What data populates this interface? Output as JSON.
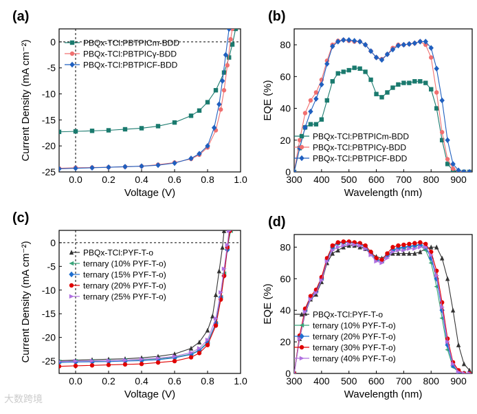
{
  "watermark": "大数跨境",
  "chart_data": [
    {
      "panel": "(a)",
      "type": "line",
      "xlabel": "Voltage (V)",
      "ylabel": "Current Density (mA cm⁻²)",
      "xlim": [
        -0.1,
        1.0
      ],
      "ylim": [
        -25,
        2.5
      ],
      "xticks": [
        0.0,
        0.2,
        0.4,
        0.6,
        0.8,
        1.0
      ],
      "yticks": [
        -25,
        -20,
        -15,
        -10,
        -5,
        0
      ],
      "xtick_labels": [
        "0.0",
        "0.2",
        "0.4",
        "0.6",
        "0.8",
        "1.0"
      ],
      "ytick_labels": [
        "-25",
        "-20",
        "-15",
        "-10",
        "-5",
        "0"
      ],
      "legend": "top-left",
      "series": [
        {
          "name": "PBQx-TCl:PBTPICm-BDD",
          "color": "#1a7a6e",
          "marker": "square",
          "x": [
            -0.1,
            0,
            0.1,
            0.2,
            0.3,
            0.4,
            0.5,
            0.6,
            0.7,
            0.75,
            0.8,
            0.85,
            0.9,
            0.93,
            0.95,
            0.97
          ],
          "y": [
            -17.3,
            -17.2,
            -17.1,
            -17.0,
            -16.8,
            -16.6,
            -16.2,
            -15.5,
            -14.2,
            -13.2,
            -11.6,
            -9.3,
            -5.9,
            -3.0,
            -0.5,
            2.5
          ]
        },
        {
          "name": "PBQx-TCl:PBTPICγ-BDD",
          "color": "#f07070",
          "marker": "circle",
          "x": [
            -0.1,
            0,
            0.1,
            0.2,
            0.3,
            0.4,
            0.5,
            0.6,
            0.7,
            0.75,
            0.8,
            0.85,
            0.88,
            0.9,
            0.92,
            0.94,
            0.95
          ],
          "y": [
            -24.3,
            -24.2,
            -24.15,
            -24.1,
            -24.0,
            -23.9,
            -23.6,
            -23.2,
            -22.5,
            -21.7,
            -20.3,
            -17.0,
            -13.0,
            -9.3,
            -4.5,
            0.5,
            2.5
          ]
        },
        {
          "name": "PBQx-TCl:PBTPICF-BDD",
          "color": "#1f5fbf",
          "marker": "diamond",
          "x": [
            -0.1,
            0,
            0.1,
            0.2,
            0.3,
            0.4,
            0.5,
            0.6,
            0.7,
            0.75,
            0.8,
            0.84,
            0.87,
            0.89,
            0.91,
            0.93
          ],
          "y": [
            -24.4,
            -24.3,
            -24.2,
            -24.1,
            -24.0,
            -23.9,
            -23.7,
            -23.3,
            -22.4,
            -21.5,
            -20.0,
            -16.5,
            -12.0,
            -7.5,
            -2.5,
            2.5
          ]
        }
      ]
    },
    {
      "panel": "(b)",
      "type": "line",
      "xlabel": "Wavelength (nm)",
      "ylabel": "EQE (%)",
      "xlim": [
        300,
        950
      ],
      "ylim": [
        0,
        90
      ],
      "xticks": [
        300,
        400,
        500,
        600,
        700,
        800,
        900
      ],
      "yticks": [
        0,
        20,
        40,
        60,
        80
      ],
      "xtick_labels": [
        "300",
        "400",
        "500",
        "600",
        "700",
        "800",
        "900"
      ],
      "ytick_labels": [
        "0",
        "20",
        "40",
        "60",
        "80"
      ],
      "legend": "bottom-center",
      "series": [
        {
          "name": "PBQx-TCl:PBTPICm-BDD",
          "color": "#1a7a6e",
          "marker": "square",
          "x": [
            300,
            320,
            340,
            360,
            380,
            400,
            420,
            440,
            460,
            480,
            500,
            520,
            540,
            560,
            580,
            600,
            620,
            640,
            660,
            680,
            700,
            720,
            740,
            760,
            780,
            800,
            820,
            840,
            860,
            880,
            900,
            920,
            940
          ],
          "y": [
            0,
            15,
            28,
            30,
            30,
            33,
            45,
            57,
            62,
            63,
            64,
            65.5,
            65,
            63,
            58,
            49,
            47,
            50,
            53,
            55,
            56,
            56,
            57,
            57,
            56,
            52,
            40,
            20,
            5,
            1,
            0,
            0,
            0
          ]
        },
        {
          "name": "PBQx-TCl:PBTPICγ-BDD",
          "color": "#f07070",
          "marker": "circle",
          "x": [
            300,
            320,
            340,
            360,
            380,
            400,
            420,
            440,
            460,
            480,
            500,
            520,
            540,
            560,
            580,
            600,
            620,
            640,
            660,
            680,
            700,
            720,
            740,
            760,
            780,
            800,
            820,
            840,
            860,
            880,
            900,
            920,
            940
          ],
          "y": [
            0,
            20,
            37,
            45,
            50,
            58,
            70,
            80,
            82.5,
            83,
            82.5,
            82,
            82,
            80,
            76,
            72,
            71,
            74,
            78,
            80,
            80,
            80.5,
            81,
            82,
            80,
            72,
            50,
            25,
            8,
            2,
            0.5,
            0,
            0
          ]
        },
        {
          "name": "PBQx-TCl:PBTPICF-BDD",
          "color": "#1f5fbf",
          "marker": "diamond",
          "x": [
            300,
            320,
            340,
            360,
            380,
            400,
            420,
            440,
            460,
            480,
            500,
            520,
            540,
            560,
            580,
            600,
            620,
            640,
            660,
            680,
            700,
            720,
            740,
            760,
            780,
            800,
            820,
            840,
            860,
            880,
            900,
            920,
            940
          ],
          "y": [
            0,
            15,
            28,
            38,
            46,
            55,
            68,
            79,
            82,
            83,
            83,
            82.5,
            82,
            80,
            76,
            72,
            70.5,
            74,
            77,
            79.5,
            80,
            80.5,
            81,
            82,
            82,
            78,
            65,
            45,
            20,
            5,
            1,
            0,
            0
          ]
        }
      ]
    },
    {
      "panel": "(c)",
      "type": "line",
      "xlabel": "Voltage (V)",
      "ylabel": "Current Density (mA cm⁻²)",
      "xlim": [
        -0.1,
        1.0
      ],
      "ylim": [
        -27.6,
        2.6
      ],
      "xticks": [
        0.0,
        0.2,
        0.4,
        0.6,
        0.8,
        1.0
      ],
      "yticks": [
        -25,
        -20,
        -15,
        -10,
        -5,
        0
      ],
      "xtick_labels": [
        "0.0",
        "0.2",
        "0.4",
        "0.6",
        "0.8",
        "1.0"
      ],
      "ytick_labels": [
        "-25",
        "-20",
        "-15",
        "-10",
        "-5",
        "0"
      ],
      "legend": "top-left",
      "series": [
        {
          "name": "PBQx-TCl:PYF-T-o",
          "color": "#333333",
          "marker": "triangle-up",
          "x": [
            -0.1,
            0,
            0.1,
            0.2,
            0.3,
            0.4,
            0.5,
            0.6,
            0.7,
            0.75,
            0.8,
            0.83,
            0.85,
            0.87,
            0.89,
            0.9
          ],
          "y": [
            -24.9,
            -24.8,
            -24.7,
            -24.6,
            -24.5,
            -24.3,
            -24.0,
            -23.5,
            -22.3,
            -21.0,
            -18.5,
            -15.5,
            -11,
            -6,
            -1,
            2.5
          ]
        },
        {
          "name": "ternary (10% PYF-T-o)",
          "color": "#3aa57a",
          "marker": "triangle-left",
          "x": [
            -0.1,
            0,
            0.1,
            0.2,
            0.3,
            0.4,
            0.5,
            0.6,
            0.7,
            0.75,
            0.8,
            0.85,
            0.88,
            0.9,
            0.92,
            0.94
          ],
          "y": [
            -25.1,
            -25.0,
            -25.0,
            -24.9,
            -24.8,
            -24.7,
            -24.5,
            -24.2,
            -23.5,
            -22.7,
            -21.0,
            -17.0,
            -11.5,
            -6.5,
            -1,
            2.5
          ]
        },
        {
          "name": "ternary (15% PYF-T-o)",
          "color": "#1f6fd0",
          "marker": "diamond",
          "x": [
            -0.1,
            0,
            0.1,
            0.2,
            0.3,
            0.4,
            0.5,
            0.6,
            0.7,
            0.75,
            0.8,
            0.85,
            0.88,
            0.9,
            0.92,
            0.935
          ],
          "y": [
            -25.3,
            -25.2,
            -25.15,
            -25.1,
            -25.0,
            -24.9,
            -24.7,
            -24.3,
            -23.6,
            -22.8,
            -21.2,
            -17.0,
            -11.5,
            -7,
            -1.5,
            2.5
          ]
        },
        {
          "name": "ternary (20% PYF-T-o)",
          "color": "#e00000",
          "marker": "circle",
          "x": [
            -0.1,
            0,
            0.1,
            0.2,
            0.3,
            0.4,
            0.5,
            0.6,
            0.7,
            0.75,
            0.8,
            0.85,
            0.88,
            0.9,
            0.92,
            0.935
          ],
          "y": [
            -26.1,
            -26.0,
            -25.9,
            -25.8,
            -25.7,
            -25.6,
            -25.3,
            -25.0,
            -24.2,
            -23.3,
            -21.6,
            -17.5,
            -12,
            -7,
            -1,
            2.5
          ]
        },
        {
          "name": "ternary (25% PYF-T-o)",
          "color": "#b070e0",
          "marker": "triangle-right",
          "x": [
            -0.1,
            0,
            0.1,
            0.2,
            0.3,
            0.4,
            0.5,
            0.6,
            0.7,
            0.75,
            0.8,
            0.85,
            0.88,
            0.9,
            0.92,
            0.93
          ],
          "y": [
            -25.1,
            -25.0,
            -24.95,
            -24.9,
            -24.8,
            -24.6,
            -24.4,
            -24.0,
            -23.2,
            -22.3,
            -20.5,
            -16.0,
            -10.5,
            -5.5,
            -0.5,
            2.5
          ]
        }
      ]
    },
    {
      "panel": "(d)",
      "type": "line",
      "xlabel": "Wavelength (nm)",
      "ylabel": "EQE (%)",
      "xlim": [
        300,
        950
      ],
      "ylim": [
        0,
        88
      ],
      "xticks": [
        300,
        400,
        500,
        600,
        700,
        800,
        900
      ],
      "yticks": [
        0,
        20,
        40,
        60,
        80
      ],
      "xtick_labels": [
        "300",
        "400",
        "500",
        "600",
        "700",
        "800",
        "900"
      ],
      "ytick_labels": [
        "0",
        "20",
        "40",
        "60",
        "80"
      ],
      "legend": "bottom-left",
      "series": [
        {
          "name": "PBQx-TCl:PYF-T-o",
          "color": "#333333",
          "marker": "triangle-up",
          "x": [
            300,
            320,
            340,
            360,
            380,
            400,
            420,
            440,
            460,
            480,
            500,
            520,
            540,
            560,
            580,
            600,
            620,
            640,
            660,
            680,
            700,
            720,
            740,
            760,
            780,
            800,
            820,
            840,
            860,
            880,
            900,
            920,
            940
          ],
          "y": [
            0,
            22,
            38,
            47,
            50,
            58,
            70,
            76,
            78,
            80,
            81,
            81,
            80,
            79,
            76,
            74,
            73,
            75,
            76,
            76,
            76,
            76,
            76,
            77,
            79,
            80,
            80,
            73,
            60,
            40,
            18,
            6,
            2
          ]
        },
        {
          "name": "ternary (10% PYF-T-o)",
          "color": "#3aa57a",
          "marker": "triangle-left",
          "x": [
            300,
            320,
            340,
            360,
            380,
            400,
            420,
            440,
            460,
            480,
            500,
            520,
            540,
            560,
            580,
            600,
            620,
            640,
            660,
            680,
            700,
            720,
            740,
            760,
            780,
            800,
            820,
            840,
            860,
            880,
            900,
            920,
            940
          ],
          "y": [
            0,
            24,
            40,
            48,
            52,
            60,
            72,
            80,
            82.5,
            83,
            83,
            82.5,
            82,
            80,
            76,
            72,
            71,
            75,
            78,
            79,
            79.5,
            80,
            81,
            81,
            78,
            70,
            55,
            35,
            15,
            4,
            1,
            0,
            0
          ]
        },
        {
          "name": "ternary (20% PYF-T-o)",
          "color": "#1f6fd0",
          "marker": "diamond",
          "x": [
            300,
            320,
            340,
            360,
            380,
            400,
            420,
            440,
            460,
            480,
            500,
            520,
            540,
            560,
            580,
            600,
            620,
            640,
            660,
            680,
            700,
            720,
            740,
            760,
            780,
            800,
            820,
            840,
            860,
            880,
            900,
            920,
            940
          ],
          "y": [
            0,
            23,
            40,
            48,
            52,
            60,
            72,
            80,
            82.5,
            83,
            83,
            82.5,
            82,
            80,
            76,
            72,
            71,
            75,
            78,
            79.5,
            80,
            80.5,
            81,
            81.5,
            80,
            73,
            60,
            40,
            18,
            5,
            1,
            0,
            0
          ]
        },
        {
          "name": "ternary (30% PYF-T-o)",
          "color": "#e00000",
          "marker": "circle",
          "x": [
            300,
            320,
            340,
            360,
            380,
            400,
            420,
            440,
            460,
            480,
            500,
            520,
            540,
            560,
            580,
            600,
            620,
            640,
            660,
            680,
            700,
            720,
            740,
            760,
            780,
            800,
            820,
            840,
            860,
            880,
            900,
            920,
            940
          ],
          "y": [
            0,
            24,
            41,
            49,
            53,
            61,
            73,
            81,
            83,
            83.5,
            83.5,
            83,
            82.5,
            81,
            77,
            73,
            72,
            76,
            80,
            81,
            81.5,
            82,
            82.5,
            83,
            82,
            77,
            65,
            45,
            22,
            7,
            2,
            0,
            0
          ]
        },
        {
          "name": "ternary (40% PYF-T-o)",
          "color": "#b070e0",
          "marker": "triangle-right",
          "x": [
            300,
            320,
            340,
            360,
            380,
            400,
            420,
            440,
            460,
            480,
            500,
            520,
            540,
            560,
            580,
            600,
            620,
            640,
            660,
            680,
            700,
            720,
            740,
            760,
            780,
            800,
            820,
            840,
            860,
            880,
            900,
            920,
            940
          ],
          "y": [
            0,
            22,
            39,
            47,
            51,
            59,
            71,
            78,
            80,
            81,
            82,
            81.5,
            81,
            79,
            75,
            71,
            70,
            73,
            77,
            78,
            78,
            79,
            79,
            80,
            80,
            75,
            62,
            42,
            20,
            6,
            1,
            0,
            0
          ]
        }
      ]
    }
  ]
}
